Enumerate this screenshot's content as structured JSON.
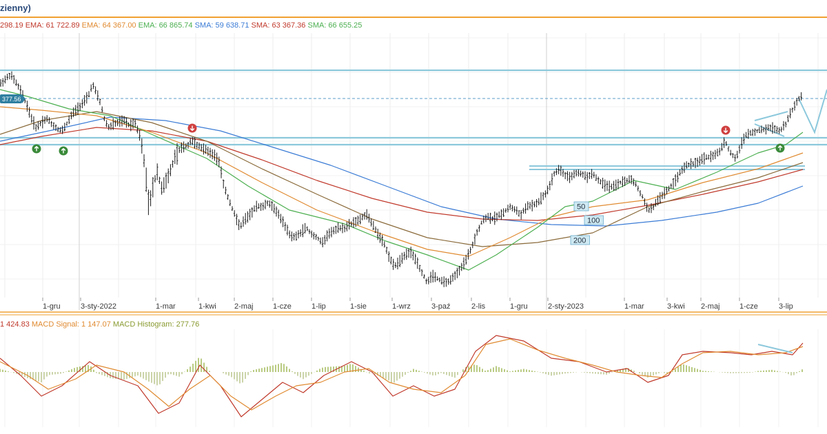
{
  "title": "zienny)",
  "legend": [
    {
      "text": "298.19",
      "color": "#c0392b"
    },
    {
      "text": " EMA: 61 722.89",
      "color": "#c0392b"
    },
    {
      "text": " EMA: 64 367.00",
      "color": "#e08a30"
    },
    {
      "text": " EMA: 66 865.74",
      "color": "#4caf50"
    },
    {
      "text": " SMA: 59 638.71",
      "color": "#3a7bd5"
    },
    {
      "text": " SMA: 63 367.36",
      "color": "#c0392b"
    },
    {
      "text": " SMA: 66 655.25",
      "color": "#4caf50"
    }
  ],
  "macd_legend": [
    {
      "text": "1 424.83",
      "color": "#c0392b"
    },
    {
      "text": " MACD Signal: 1 147.07",
      "color": "#e08a30"
    },
    {
      "text": " MACD Histogram: 277.76",
      "color": "#8a9a30"
    }
  ],
  "chart_data": {
    "type": "bar",
    "subtype": "ohlc-with-moving-averages-and-macd",
    "x_ticks": [
      "1-gru",
      "3-sty-2022",
      "1-mar",
      "1-kwi",
      "2-maj",
      "1-cze",
      "1-lip",
      "1-sie",
      "1-wrz",
      "3-paź",
      "2-lis",
      "1-gru",
      "2-sty-2023",
      "1-mar",
      "3-kwi",
      "2-maj",
      "1-cze",
      "3-lip"
    ],
    "price_label": "377.56",
    "ma_labels": [
      "50",
      "100",
      "200"
    ],
    "price_series": [
      [
        0,
        122
      ],
      [
        8,
        115
      ],
      [
        15,
        108
      ],
      [
        22,
        118
      ],
      [
        30,
        132
      ],
      [
        38,
        150
      ],
      [
        45,
        170
      ],
      [
        52,
        185
      ],
      [
        60,
        178
      ],
      [
        68,
        172
      ],
      [
        75,
        180
      ],
      [
        82,
        186
      ],
      [
        90,
        190
      ],
      [
        98,
        178
      ],
      [
        105,
        165
      ],
      [
        112,
        158
      ],
      [
        120,
        150
      ],
      [
        128,
        140
      ],
      [
        134,
        122
      ],
      [
        140,
        135
      ],
      [
        146,
        150
      ],
      [
        152,
        175
      ],
      [
        158,
        185
      ],
      [
        165,
        180
      ],
      [
        172,
        178
      ],
      [
        180,
        175
      ],
      [
        188,
        182
      ],
      [
        196,
        178
      ],
      [
        204,
        200
      ],
      [
        210,
        240
      ],
      [
        216,
        300
      ],
      [
        222,
        270
      ],
      [
        228,
        250
      ],
      [
        235,
        275
      ],
      [
        242,
        260
      ],
      [
        248,
        245
      ],
      [
        255,
        225
      ],
      [
        262,
        215
      ],
      [
        270,
        212
      ],
      [
        278,
        205
      ],
      [
        286,
        210
      ],
      [
        294,
        215
      ],
      [
        302,
        220
      ],
      [
        310,
        225
      ],
      [
        318,
        235
      ],
      [
        325,
        270
      ],
      [
        332,
        290
      ],
      [
        340,
        310
      ],
      [
        348,
        330
      ],
      [
        356,
        318
      ],
      [
        364,
        310
      ],
      [
        372,
        300
      ],
      [
        380,
        300
      ],
      [
        388,
        295
      ],
      [
        396,
        300
      ],
      [
        404,
        310
      ],
      [
        412,
        325
      ],
      [
        420,
        340
      ],
      [
        428,
        345
      ],
      [
        436,
        338
      ],
      [
        444,
        330
      ],
      [
        452,
        340
      ],
      [
        460,
        345
      ],
      [
        468,
        352
      ],
      [
        476,
        340
      ],
      [
        484,
        335
      ],
      [
        492,
        330
      ],
      [
        500,
        332
      ],
      [
        508,
        325
      ],
      [
        516,
        322
      ],
      [
        524,
        318
      ],
      [
        532,
        310
      ],
      [
        540,
        325
      ],
      [
        548,
        340
      ],
      [
        556,
        350
      ],
      [
        564,
        372
      ],
      [
        572,
        385
      ],
      [
        580,
        380
      ],
      [
        588,
        370
      ],
      [
        596,
        365
      ],
      [
        604,
        378
      ],
      [
        612,
        395
      ],
      [
        620,
        410
      ],
      [
        628,
        400
      ],
      [
        636,
        405
      ],
      [
        644,
        410
      ],
      [
        652,
        408
      ],
      [
        660,
        400
      ],
      [
        668,
        390
      ],
      [
        676,
        378
      ],
      [
        684,
        360
      ],
      [
        692,
        338
      ],
      [
        700,
        320
      ],
      [
        708,
        315
      ],
      [
        716,
        318
      ],
      [
        724,
        312
      ],
      [
        732,
        308
      ],
      [
        740,
        300
      ],
      [
        748,
        305
      ],
      [
        756,
        312
      ],
      [
        764,
        300
      ],
      [
        772,
        298
      ],
      [
        780,
        295
      ],
      [
        788,
        285
      ],
      [
        796,
        275
      ],
      [
        804,
        252
      ],
      [
        812,
        245
      ],
      [
        820,
        255
      ],
      [
        828,
        258
      ],
      [
        836,
        250
      ],
      [
        844,
        252
      ],
      [
        852,
        258
      ],
      [
        860,
        252
      ],
      [
        868,
        262
      ],
      [
        876,
        268
      ],
      [
        884,
        272
      ],
      [
        892,
        270
      ],
      [
        900,
        265
      ],
      [
        908,
        262
      ],
      [
        916,
        260
      ],
      [
        924,
        270
      ],
      [
        932,
        285
      ],
      [
        940,
        305
      ],
      [
        948,
        300
      ],
      [
        956,
        290
      ],
      [
        964,
        280
      ],
      [
        972,
        272
      ],
      [
        980,
        262
      ],
      [
        988,
        248
      ],
      [
        996,
        240
      ],
      [
        1004,
        238
      ],
      [
        1012,
        235
      ],
      [
        1020,
        230
      ],
      [
        1028,
        228
      ],
      [
        1036,
        226
      ],
      [
        1044,
        220
      ],
      [
        1052,
        205
      ],
      [
        1060,
        222
      ],
      [
        1068,
        230
      ],
      [
        1076,
        208
      ],
      [
        1084,
        195
      ],
      [
        1092,
        192
      ],
      [
        1100,
        190
      ],
      [
        1108,
        188
      ],
      [
        1116,
        185
      ],
      [
        1124,
        188
      ],
      [
        1132,
        190
      ],
      [
        1140,
        180
      ],
      [
        1148,
        162
      ],
      [
        1155,
        150
      ],
      [
        1162,
        140
      ]
    ],
    "ma_series": [
      {
        "color": "#3a7bd5",
        "points": [
          [
            0,
            205
          ],
          [
            80,
            188
          ],
          [
            160,
            170
          ],
          [
            240,
            175
          ],
          [
            320,
            190
          ],
          [
            400,
            215
          ],
          [
            480,
            240
          ],
          [
            560,
            270
          ],
          [
            640,
            300
          ],
          [
            720,
            318
          ],
          [
            800,
            326
          ],
          [
            880,
            328
          ],
          [
            960,
            320
          ],
          [
            1040,
            308
          ],
          [
            1100,
            295
          ],
          [
            1165,
            270
          ]
        ]
      },
      {
        "color": "#c0392b",
        "points": [
          [
            0,
            210
          ],
          [
            60,
            198
          ],
          [
            140,
            185
          ],
          [
            220,
            190
          ],
          [
            300,
            205
          ],
          [
            380,
            232
          ],
          [
            460,
            262
          ],
          [
            540,
            288
          ],
          [
            620,
            308
          ],
          [
            700,
            318
          ],
          [
            780,
            320
          ],
          [
            860,
            312
          ],
          [
            940,
            298
          ],
          [
            1020,
            282
          ],
          [
            1100,
            264
          ],
          [
            1165,
            246
          ]
        ]
      },
      {
        "color": "#8a6a3a",
        "points": [
          [
            0,
            195
          ],
          [
            60,
            175
          ],
          [
            140,
            162
          ],
          [
            220,
            178
          ],
          [
            300,
            205
          ],
          [
            380,
            245
          ],
          [
            460,
            282
          ],
          [
            540,
            318
          ],
          [
            620,
            345
          ],
          [
            700,
            358
          ],
          [
            780,
            352
          ],
          [
            860,
            338
          ],
          [
            940,
            300
          ],
          [
            1020,
            278
          ],
          [
            1100,
            258
          ],
          [
            1165,
            236
          ]
        ]
      },
      {
        "color": "#e08a30",
        "points": [
          [
            0,
            155
          ],
          [
            60,
            160
          ],
          [
            140,
            168
          ],
          [
            220,
            192
          ],
          [
            300,
            222
          ],
          [
            380,
            265
          ],
          [
            460,
            305
          ],
          [
            540,
            335
          ],
          [
            620,
            362
          ],
          [
            680,
            372
          ],
          [
            740,
            345
          ],
          [
            800,
            315
          ],
          [
            860,
            300
          ],
          [
            940,
            290
          ],
          [
            1020,
            265
          ],
          [
            1100,
            245
          ],
          [
            1165,
            222
          ]
        ]
      },
      {
        "color": "#4caf50",
        "points": [
          [
            0,
            130
          ],
          [
            40,
            140
          ],
          [
            100,
            158
          ],
          [
            160,
            168
          ],
          [
            220,
            195
          ],
          [
            300,
            230
          ],
          [
            360,
            270
          ],
          [
            420,
            305
          ],
          [
            500,
            325
          ],
          [
            560,
            350
          ],
          [
            620,
            370
          ],
          [
            680,
            392
          ],
          [
            720,
            370
          ],
          [
            780,
            330
          ],
          [
            820,
            300
          ],
          [
            860,
            292
          ],
          [
            920,
            262
          ],
          [
            980,
            275
          ],
          [
            1040,
            250
          ],
          [
            1100,
            222
          ],
          [
            1140,
            210
          ],
          [
            1165,
            192
          ]
        ]
      }
    ],
    "macd_series": [
      {
        "color": "#c0392b",
        "points": [
          [
            0,
            520
          ],
          [
            30,
            545
          ],
          [
            60,
            575
          ],
          [
            90,
            560
          ],
          [
            130,
            525
          ],
          [
            160,
            545
          ],
          [
            200,
            560
          ],
          [
            230,
            600
          ],
          [
            260,
            585
          ],
          [
            290,
            530
          ],
          [
            320,
            560
          ],
          [
            350,
            605
          ],
          [
            380,
            580
          ],
          [
            410,
            555
          ],
          [
            440,
            570
          ],
          [
            470,
            545
          ],
          [
            510,
            525
          ],
          [
            540,
            540
          ],
          [
            570,
            575
          ],
          [
            600,
            560
          ],
          [
            630,
            575
          ],
          [
            660,
            565
          ],
          [
            690,
            510
          ],
          [
            720,
            487
          ],
          [
            760,
            495
          ],
          [
            800,
            520
          ],
          [
            840,
            525
          ],
          [
            880,
            540
          ],
          [
            910,
            535
          ],
          [
            940,
            555
          ],
          [
            970,
            545
          ],
          [
            990,
            515
          ],
          [
            1020,
            510
          ],
          [
            1060,
            512
          ],
          [
            1090,
            515
          ],
          [
            1120,
            510
          ],
          [
            1150,
            515
          ],
          [
            1165,
            498
          ]
        ]
      },
      {
        "color": "#e08a30",
        "points": [
          [
            0,
            525
          ],
          [
            40,
            545
          ],
          [
            70,
            565
          ],
          [
            110,
            550
          ],
          [
            140,
            530
          ],
          [
            180,
            540
          ],
          [
            215,
            565
          ],
          [
            245,
            590
          ],
          [
            275,
            565
          ],
          [
            305,
            545
          ],
          [
            335,
            575
          ],
          [
            365,
            595
          ],
          [
            400,
            575
          ],
          [
            430,
            560
          ],
          [
            465,
            555
          ],
          [
            500,
            540
          ],
          [
            535,
            535
          ],
          [
            565,
            555
          ],
          [
            600,
            565
          ],
          [
            640,
            570
          ],
          [
            675,
            545
          ],
          [
            705,
            500
          ],
          [
            740,
            492
          ],
          [
            780,
            508
          ],
          [
            820,
            520
          ],
          [
            860,
            530
          ],
          [
            895,
            540
          ],
          [
            930,
            545
          ],
          [
            960,
            548
          ],
          [
            990,
            528
          ],
          [
            1020,
            512
          ],
          [
            1060,
            510
          ],
          [
            1100,
            515
          ],
          [
            1140,
            512
          ],
          [
            1165,
            503
          ]
        ]
      }
    ],
    "histogram": {
      "zero": 540,
      "step": 4,
      "base_color": "#8aa830"
    },
    "horizontal_lines": [
      102,
      200,
      210
    ],
    "dashed_line": 143,
    "signal_arrows": [
      {
        "x": 53,
        "y": 216,
        "dir": "up"
      },
      {
        "x": 92,
        "y": 219,
        "dir": "up"
      },
      {
        "x": 279,
        "y": 186,
        "dir": "down"
      },
      {
        "x": 1053,
        "y": 189,
        "dir": "down"
      },
      {
        "x": 1132,
        "y": 215,
        "dir": "up"
      }
    ]
  }
}
